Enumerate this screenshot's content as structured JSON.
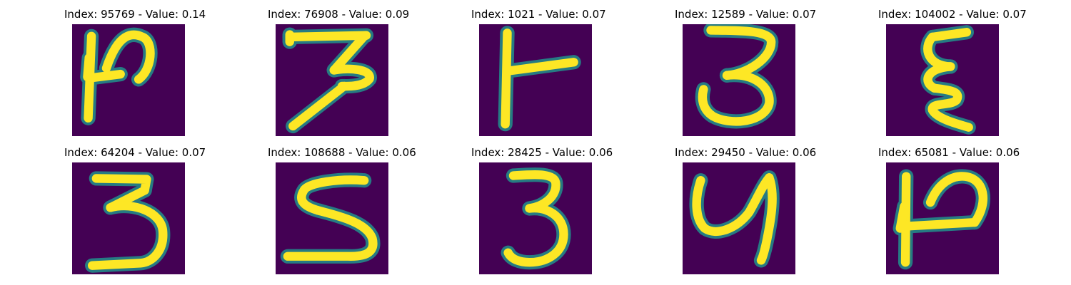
{
  "colors": {
    "background": "#440154",
    "stroke_mid": "#21918c",
    "stroke": "#fde725"
  },
  "panels": [
    {
      "title": "Index: 95769 - Value: 0.14"
    },
    {
      "title": "Index: 76908 - Value: 0.09"
    },
    {
      "title": "Index: 1021 - Value: 0.07"
    },
    {
      "title": "Index: 12589 - Value: 0.07"
    },
    {
      "title": "Index: 104002 - Value: 0.07"
    },
    {
      "title": "Index: 64204 - Value: 0.07"
    },
    {
      "title": "Index: 108688 - Value: 0.06"
    },
    {
      "title": "Index: 28425 - Value: 0.06"
    },
    {
      "title": "Index: 29450 - Value: 0.06"
    },
    {
      "title": "Index: 65081 - Value: 0.06"
    }
  ]
}
